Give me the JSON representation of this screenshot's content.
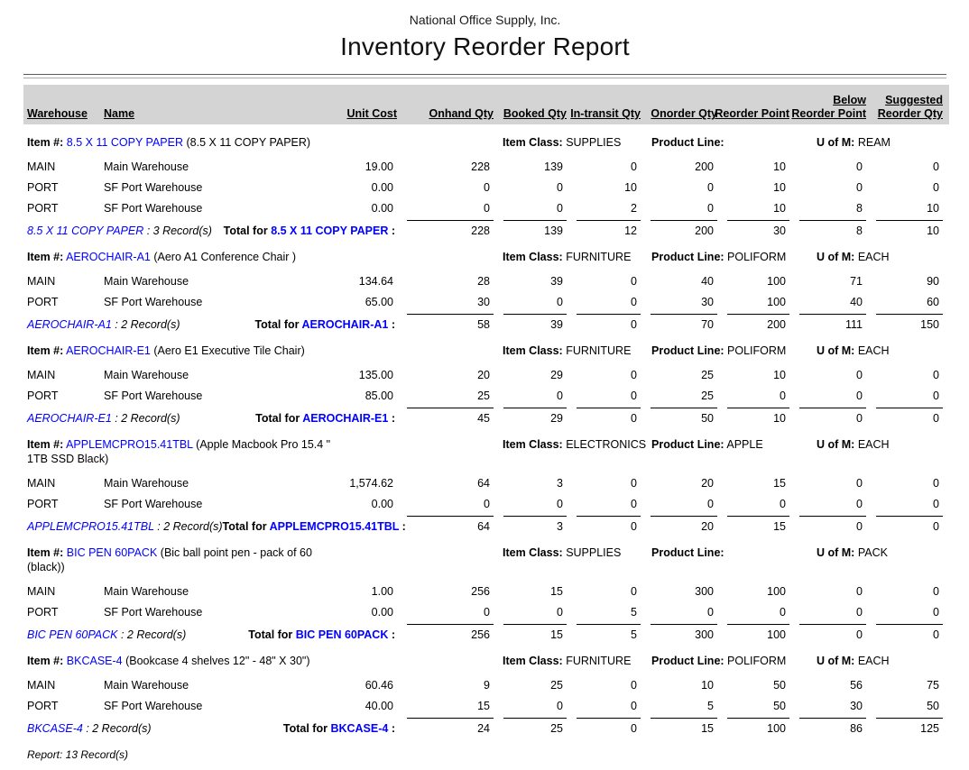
{
  "report": {
    "company": "National Office Supply, Inc.",
    "title": "Inventory Reorder Report",
    "footer": "Report: 13 Record(s)"
  },
  "labels": {
    "item_prefix": "Item #:",
    "item_class": "Item Class:",
    "product_line": "Product Line:",
    "uom": "U of M:",
    "total_prefix": "Total for",
    "total_suffix": ":",
    "record_separator": ":"
  },
  "columns": [
    {
      "label": "Warehouse"
    },
    {
      "label": "Name"
    },
    {
      "label": "Unit Cost"
    },
    {
      "label": "Onhand Qty"
    },
    {
      "label": "Booked Qty"
    },
    {
      "label": "In-transit Qty"
    },
    {
      "label": "Onorder Qty"
    },
    {
      "label": "Reorder Point"
    },
    {
      "top": "Below",
      "label": "Reorder Point"
    },
    {
      "top": "Suggested",
      "label": "Reorder Qty"
    }
  ],
  "groups": [
    {
      "item_code": "8.5 X 11 COPY PAPER",
      "item_description_lines": [
        "(8.5 X 11 COPY PAPER)"
      ],
      "item_class": "SUPPLIES",
      "product_line": "",
      "uom": "REAM",
      "rows": [
        {
          "warehouse": "MAIN",
          "name": "Main Warehouse",
          "unit_cost": "19.00",
          "onhand": "228",
          "booked": "139",
          "intransit": "0",
          "onorder": "200",
          "reorder_point": "10",
          "below_reorder": "0",
          "suggested": "0"
        },
        {
          "warehouse": "PORT",
          "name": "SF Port Warehouse",
          "unit_cost": "0.00",
          "onhand": "0",
          "booked": "0",
          "intransit": "10",
          "onorder": "0",
          "reorder_point": "10",
          "below_reorder": "0",
          "suggested": "0"
        },
        {
          "warehouse": "PORT",
          "name": "SF Port Warehouse",
          "unit_cost": "0.00",
          "onhand": "0",
          "booked": "0",
          "intransit": "2",
          "onorder": "0",
          "reorder_point": "10",
          "below_reorder": "8",
          "suggested": "10"
        }
      ],
      "record_count": "3 Record(s)",
      "total": {
        "onhand": "228",
        "booked": "139",
        "intransit": "12",
        "onorder": "200",
        "reorder_point": "30",
        "below_reorder": "8",
        "suggested": "10"
      }
    },
    {
      "item_code": "AEROCHAIR-A1",
      "item_description_lines": [
        "(Aero A1 Conference Chair )"
      ],
      "item_class": "FURNITURE",
      "product_line": "POLIFORM",
      "uom": "EACH",
      "rows": [
        {
          "warehouse": "MAIN",
          "name": "Main Warehouse",
          "unit_cost": "134.64",
          "onhand": "28",
          "booked": "39",
          "intransit": "0",
          "onorder": "40",
          "reorder_point": "100",
          "below_reorder": "71",
          "suggested": "90"
        },
        {
          "warehouse": "PORT",
          "name": "SF Port Warehouse",
          "unit_cost": "65.00",
          "onhand": "30",
          "booked": "0",
          "intransit": "0",
          "onorder": "30",
          "reorder_point": "100",
          "below_reorder": "40",
          "suggested": "60"
        }
      ],
      "record_count": "2 Record(s)",
      "total": {
        "onhand": "58",
        "booked": "39",
        "intransit": "0",
        "onorder": "70",
        "reorder_point": "200",
        "below_reorder": "111",
        "suggested": "150"
      }
    },
    {
      "item_code": "AEROCHAIR-E1",
      "item_description_lines": [
        "(Aero E1 Executive Tile Chair)"
      ],
      "item_class": "FURNITURE",
      "product_line": "POLIFORM",
      "uom": "EACH",
      "rows": [
        {
          "warehouse": "MAIN",
          "name": "Main Warehouse",
          "unit_cost": "135.00",
          "onhand": "20",
          "booked": "29",
          "intransit": "0",
          "onorder": "25",
          "reorder_point": "10",
          "below_reorder": "0",
          "suggested": "0"
        },
        {
          "warehouse": "PORT",
          "name": "SF Port Warehouse",
          "unit_cost": "85.00",
          "onhand": "25",
          "booked": "0",
          "intransit": "0",
          "onorder": "25",
          "reorder_point": "0",
          "below_reorder": "0",
          "suggested": "0"
        }
      ],
      "record_count": "2 Record(s)",
      "total": {
        "onhand": "45",
        "booked": "29",
        "intransit": "0",
        "onorder": "50",
        "reorder_point": "10",
        "below_reorder": "0",
        "suggested": "0"
      }
    },
    {
      "item_code": "APPLEMCPRO15.41TBL",
      "item_description_lines": [
        "(Apple Macbook Pro 15.4 \"",
        "1TB SSD Black)"
      ],
      "item_class": "ELECTRONICS",
      "product_line": "APPLE",
      "uom": "EACH",
      "rows": [
        {
          "warehouse": "MAIN",
          "name": "Main Warehouse",
          "unit_cost": "1,574.62",
          "onhand": "64",
          "booked": "3",
          "intransit": "0",
          "onorder": "20",
          "reorder_point": "15",
          "below_reorder": "0",
          "suggested": "0"
        },
        {
          "warehouse": "PORT",
          "name": "SF Port Warehouse",
          "unit_cost": "0.00",
          "onhand": "0",
          "booked": "0",
          "intransit": "0",
          "onorder": "0",
          "reorder_point": "0",
          "below_reorder": "0",
          "suggested": "0"
        }
      ],
      "record_count": "2 Record(s)",
      "total": {
        "onhand": "64",
        "booked": "3",
        "intransit": "0",
        "onorder": "20",
        "reorder_point": "15",
        "below_reorder": "0",
        "suggested": "0"
      }
    },
    {
      "item_code": "BIC PEN 60PACK",
      "item_description_lines": [
        "(Bic ball point pen - pack of 60",
        "(black))"
      ],
      "item_class": "SUPPLIES",
      "product_line": "",
      "uom": "PACK",
      "rows": [
        {
          "warehouse": "MAIN",
          "name": "Main Warehouse",
          "unit_cost": "1.00",
          "onhand": "256",
          "booked": "15",
          "intransit": "0",
          "onorder": "300",
          "reorder_point": "100",
          "below_reorder": "0",
          "suggested": "0"
        },
        {
          "warehouse": "PORT",
          "name": "SF Port Warehouse",
          "unit_cost": "0.00",
          "onhand": "0",
          "booked": "0",
          "intransit": "5",
          "onorder": "0",
          "reorder_point": "0",
          "below_reorder": "0",
          "suggested": "0"
        }
      ],
      "record_count": "2 Record(s)",
      "total": {
        "onhand": "256",
        "booked": "15",
        "intransit": "5",
        "onorder": "300",
        "reorder_point": "100",
        "below_reorder": "0",
        "suggested": "0"
      }
    },
    {
      "item_code": "BKCASE-4",
      "item_description_lines": [
        "(Bookcase 4 shelves 12\" - 48\" X 30\")"
      ],
      "item_class": "FURNITURE",
      "product_line": "POLIFORM",
      "uom": "EACH",
      "rows": [
        {
          "warehouse": "MAIN",
          "name": "Main Warehouse",
          "unit_cost": "60.46",
          "onhand": "9",
          "booked": "25",
          "intransit": "0",
          "onorder": "10",
          "reorder_point": "50",
          "below_reorder": "56",
          "suggested": "75"
        },
        {
          "warehouse": "PORT",
          "name": "SF Port Warehouse",
          "unit_cost": "40.00",
          "onhand": "15",
          "booked": "0",
          "intransit": "0",
          "onorder": "5",
          "reorder_point": "50",
          "below_reorder": "30",
          "suggested": "50"
        }
      ],
      "record_count": "2 Record(s)",
      "total": {
        "onhand": "24",
        "booked": "25",
        "intransit": "0",
        "onorder": "15",
        "reorder_point": "100",
        "below_reorder": "86",
        "suggested": "125"
      }
    }
  ]
}
